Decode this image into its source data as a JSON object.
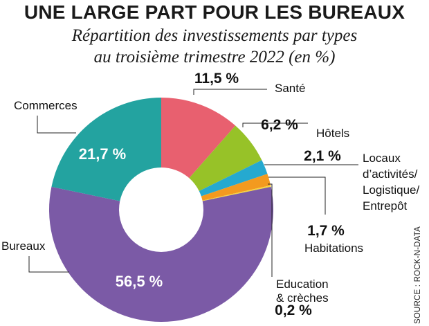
{
  "title": "UNE LARGE PART POUR LES BUREAUX",
  "subtitle_line1": "Répartition des investissements par types",
  "subtitle_line2": "au troisième trimestre 2022 (en %)",
  "source": "SOURCE : ROCK-N-DATA",
  "chart_data": {
    "type": "pie",
    "style": "donut",
    "categories": [
      "Santé",
      "Hôtels",
      "Locaux d’activités/ Logistique/ Entrepôt",
      "Habitations",
      "Education & crèches",
      "Bureaux",
      "Commerces"
    ],
    "values": [
      11.5,
      6.2,
      2.1,
      1.7,
      0.2,
      56.5,
      21.7
    ],
    "value_labels": [
      "11,5 %",
      "6,2 %",
      "2,1 %",
      "1,7 %",
      "0,2 %",
      "56,5 %",
      "21,7 %"
    ],
    "colors": [
      "#e8606f",
      "#97c228",
      "#25a9d0",
      "#f39a1f",
      "#f6d63e",
      "#7b5aa6",
      "#23a3a0"
    ],
    "category_lines": [
      [
        "Santé"
      ],
      [
        "Hôtels"
      ],
      [
        "Locaux",
        "d’activités/",
        "Logistique/",
        "Entrepôt"
      ],
      [
        "Habitations"
      ],
      [
        "Education",
        "& crèches"
      ],
      [
        "Bureaux"
      ],
      [
        "Commerces"
      ]
    ]
  }
}
